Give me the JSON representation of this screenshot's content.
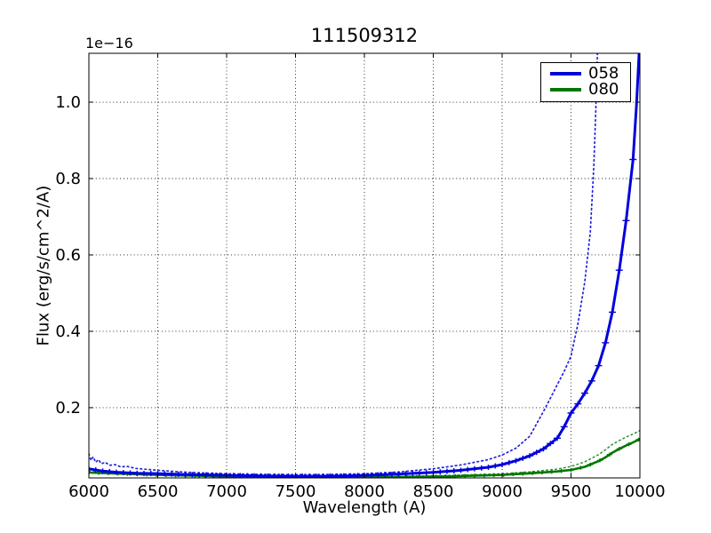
{
  "figure": {
    "kind": "matplotlib-line-plot"
  },
  "legend": {
    "position": "upper right",
    "entries": [
      {
        "label": "058",
        "color": "#0000dd"
      },
      {
        "label": "080",
        "color": "#007700"
      }
    ]
  },
  "chart_data": {
    "type": "line",
    "title": "111509312",
    "xlabel": "Wavelength (A)",
    "ylabel": "Flux (erg/s/cm^2/A)",
    "offset_text": "1e−16",
    "xlim": [
      6000,
      10000
    ],
    "ylim": [
      0.016,
      1.128
    ],
    "xticks": [
      6000,
      6500,
      7000,
      7500,
      8000,
      8500,
      9000,
      9500,
      10000
    ],
    "xtick_labels": [
      "6000",
      "6500",
      "7000",
      "7500",
      "8000",
      "8500",
      "9000",
      "9500",
      "10000"
    ],
    "yticks": [
      0.2,
      0.4,
      0.6,
      0.8,
      1.0
    ],
    "ytick_labels": [
      "0.2",
      "0.4",
      "0.6",
      "0.8",
      "1.0"
    ],
    "grid": "dotted",
    "legend_position": "upper right",
    "axis_color": "#000000",
    "background": "#ffffff",
    "series": [
      {
        "id": "058-dotted",
        "name": "058 model",
        "style": "dotted",
        "color": "#2222dd",
        "width": 1.7,
        "points": [
          [
            6000,
            0.079
          ],
          [
            6015,
            0.062
          ],
          [
            6030,
            0.071
          ],
          [
            6050,
            0.057
          ],
          [
            6070,
            0.064
          ],
          [
            6090,
            0.053
          ],
          [
            6120,
            0.057
          ],
          [
            6150,
            0.049
          ],
          [
            6190,
            0.051
          ],
          [
            6230,
            0.045
          ],
          [
            6280,
            0.046
          ],
          [
            6340,
            0.041
          ],
          [
            6400,
            0.039
          ],
          [
            6500,
            0.036
          ],
          [
            6650,
            0.032
          ],
          [
            6800,
            0.0295
          ],
          [
            7000,
            0.027
          ],
          [
            7250,
            0.0252
          ],
          [
            7500,
            0.0245
          ],
          [
            7750,
            0.025
          ],
          [
            8000,
            0.027
          ],
          [
            8250,
            0.0315
          ],
          [
            8500,
            0.04
          ],
          [
            8700,
            0.05
          ],
          [
            8900,
            0.064
          ],
          [
            9000,
            0.076
          ],
          [
            9100,
            0.094
          ],
          [
            9200,
            0.125
          ],
          [
            9300,
            0.19
          ],
          [
            9350,
            0.225
          ],
          [
            9400,
            0.26
          ],
          [
            9450,
            0.295
          ],
          [
            9500,
            0.335
          ],
          [
            9550,
            0.42
          ],
          [
            9600,
            0.53
          ],
          [
            9640,
            0.66
          ],
          [
            9665,
            0.83
          ],
          [
            9680,
            0.98
          ],
          [
            9695,
            1.17
          ]
        ]
      },
      {
        "id": "080-dotted",
        "name": "080 model",
        "style": "dotted",
        "color": "#2d8f2d",
        "width": 1.5,
        "points": [
          [
            6000,
            0.034
          ],
          [
            6200,
            0.031
          ],
          [
            6400,
            0.028
          ],
          [
            6600,
            0.026
          ],
          [
            6800,
            0.024
          ],
          [
            7000,
            0.0225
          ],
          [
            7200,
            0.021
          ],
          [
            7400,
            0.02
          ],
          [
            7600,
            0.0195
          ],
          [
            7800,
            0.019
          ],
          [
            8000,
            0.019
          ],
          [
            8200,
            0.02
          ],
          [
            8400,
            0.021
          ],
          [
            8600,
            0.0225
          ],
          [
            8800,
            0.0245
          ],
          [
            9000,
            0.027
          ],
          [
            9200,
            0.032
          ],
          [
            9400,
            0.039
          ],
          [
            9500,
            0.046
          ],
          [
            9600,
            0.058
          ],
          [
            9700,
            0.077
          ],
          [
            9750,
            0.09
          ],
          [
            9800,
            0.104
          ],
          [
            9850,
            0.114
          ],
          [
            9900,
            0.123
          ],
          [
            9950,
            0.131
          ],
          [
            10000,
            0.14
          ]
        ]
      },
      {
        "id": "080-solid",
        "name": "080",
        "legend": "080",
        "style": "solid",
        "color": "#007700",
        "width": 2.6,
        "caps": {
          "start": 6000,
          "step": 70,
          "half": 3,
          "whisker": 2.2
        },
        "points": [
          [
            6000,
            0.03
          ],
          [
            6200,
            0.0275
          ],
          [
            6400,
            0.025
          ],
          [
            6600,
            0.023
          ],
          [
            6800,
            0.0215
          ],
          [
            7000,
            0.02
          ],
          [
            7200,
            0.019
          ],
          [
            7400,
            0.018
          ],
          [
            7600,
            0.0175
          ],
          [
            7800,
            0.0172
          ],
          [
            8000,
            0.0172
          ],
          [
            8200,
            0.0178
          ],
          [
            8400,
            0.019
          ],
          [
            8600,
            0.02
          ],
          [
            8800,
            0.022
          ],
          [
            9000,
            0.024
          ],
          [
            9200,
            0.028
          ],
          [
            9400,
            0.033
          ],
          [
            9500,
            0.037
          ],
          [
            9600,
            0.045
          ],
          [
            9700,
            0.06
          ],
          [
            9750,
            0.07
          ],
          [
            9800,
            0.082
          ],
          [
            9850,
            0.092
          ],
          [
            9900,
            0.101
          ],
          [
            9950,
            0.109
          ],
          [
            10000,
            0.118
          ]
        ]
      },
      {
        "id": "058-solid",
        "name": "058",
        "legend": "058",
        "style": "solid",
        "color": "#0000dd",
        "width": 3,
        "caps": {
          "start": 6000,
          "step": 50,
          "half": 4,
          "whisker": 3
        },
        "points": [
          [
            6000,
            0.04
          ],
          [
            6100,
            0.034
          ],
          [
            6200,
            0.031
          ],
          [
            6350,
            0.028
          ],
          [
            6500,
            0.0275
          ],
          [
            6700,
            0.025
          ],
          [
            6900,
            0.0235
          ],
          [
            7100,
            0.022
          ],
          [
            7300,
            0.021
          ],
          [
            7500,
            0.0205
          ],
          [
            7700,
            0.0205
          ],
          [
            7900,
            0.0215
          ],
          [
            8100,
            0.024
          ],
          [
            8300,
            0.027
          ],
          [
            8500,
            0.0305
          ],
          [
            8700,
            0.036
          ],
          [
            8900,
            0.044
          ],
          [
            9000,
            0.051
          ],
          [
            9100,
            0.061
          ],
          [
            9200,
            0.074
          ],
          [
            9300,
            0.092
          ],
          [
            9400,
            0.12
          ],
          [
            9450,
            0.15
          ],
          [
            9500,
            0.186
          ],
          [
            9550,
            0.21
          ],
          [
            9600,
            0.238
          ],
          [
            9650,
            0.27
          ],
          [
            9700,
            0.31
          ],
          [
            9750,
            0.37
          ],
          [
            9800,
            0.45
          ],
          [
            9850,
            0.56
          ],
          [
            9900,
            0.69
          ],
          [
            9950,
            0.85
          ],
          [
            9975,
            0.99
          ],
          [
            10000,
            1.17
          ]
        ]
      }
    ]
  }
}
